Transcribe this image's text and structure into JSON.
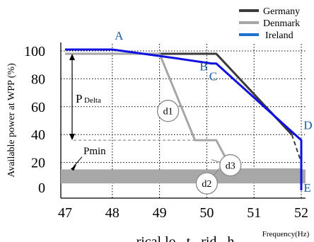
{
  "chart_data": {
    "type": "line",
    "xlabel": "Frequency(Hz)",
    "ylabel": "Available power at WPP (%)",
    "xlim": [
      46.9,
      52.1
    ],
    "ylim": [
      0,
      105
    ],
    "x_ticks": [
      "47",
      "48",
      "49",
      "50",
      "51",
      "52"
    ],
    "y_ticks": [
      "0",
      "20",
      "40",
      "60",
      "80",
      "100"
    ],
    "legend_position": "top-right",
    "series": [
      {
        "name": "Germany",
        "color": "#3b3b3b",
        "points": [
          [
            47,
            98
          ],
          [
            50.2,
            98
          ],
          [
            51.8,
            40
          ]
        ],
        "dashed_tail": [
          [
            51.8,
            40
          ],
          [
            52,
            20
          ]
        ]
      },
      {
        "name": "Denmark",
        "color": "#a6a6a6",
        "points": [
          [
            47,
            98
          ],
          [
            49,
            98
          ],
          [
            49.75,
            36
          ],
          [
            50.2,
            36
          ],
          [
            50.45,
            20
          ],
          [
            50.7,
            15
          ],
          [
            52,
            15
          ]
        ]
      },
      {
        "name": "Ireland",
        "color": "#1010e0",
        "points": [
          [
            47,
            101
          ],
          [
            48,
            101
          ],
          [
            49.3,
            95
          ],
          [
            50.1,
            91
          ],
          [
            50.2,
            91
          ],
          [
            52,
            36
          ],
          [
            52,
            0
          ]
        ]
      }
    ],
    "pmin_band": {
      "y0": 7,
      "y1": 13,
      "label": "Pmin"
    },
    "pdelta": {
      "label": "P",
      "sub": "Delta",
      "from": 98,
      "to": 36
    },
    "points": [
      {
        "label": "A",
        "x": 48.05,
        "y": 108
      },
      {
        "label": "B",
        "x": 49.85,
        "y": 86
      },
      {
        "label": "C",
        "x": 50.05,
        "y": 79
      },
      {
        "label": "D",
        "x": 52.05,
        "y": 44
      },
      {
        "label": "E",
        "x": 52.05,
        "y": -1
      }
    ],
    "markers": [
      {
        "label": "d1",
        "x": 49.18,
        "y": 57
      },
      {
        "label": "d2",
        "x": 50.0,
        "y": 5
      },
      {
        "label": "d3",
        "x": 50.5,
        "y": 18
      }
    ],
    "footer_text": "...rical lo...t...rid...h..."
  }
}
